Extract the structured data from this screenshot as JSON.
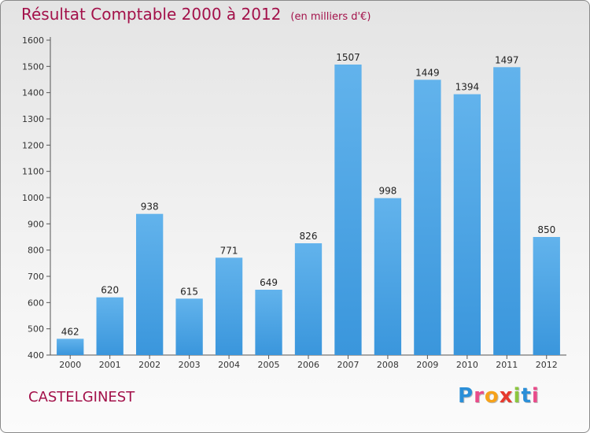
{
  "header": {
    "title": "Résultat Comptable 2000 à 2012",
    "subtitle": "(en milliers d'€)"
  },
  "footer": {
    "commune": "CASTELGINEST",
    "logo_letters": [
      "P",
      "r",
      "o",
      "x",
      "i",
      "t",
      "i"
    ],
    "logo_colors": [
      "#2b8fd8",
      "#e94c8a",
      "#f6a21a",
      "#e63a2e",
      "#8cc63f",
      "#2b8fd8",
      "#e94c8a"
    ]
  },
  "chart_data": {
    "type": "bar",
    "title": "Résultat Comptable 2000 à 2012",
    "subtitle": "(en milliers d'€)",
    "categories": [
      "2000",
      "2001",
      "2002",
      "2003",
      "2004",
      "2005",
      "2006",
      "2007",
      "2008",
      "2009",
      "2010",
      "2011",
      "2012"
    ],
    "values": [
      462,
      620,
      938,
      615,
      771,
      649,
      826,
      1507,
      998,
      1449,
      1394,
      1497,
      850
    ],
    "ylim": [
      400,
      1600
    ],
    "yticks": [
      400,
      500,
      600,
      700,
      800,
      900,
      1000,
      1100,
      1200,
      1300,
      1400,
      1500,
      1600
    ],
    "grid": false,
    "bar_color": "#3a96dc",
    "bar_color_light": "#62b3ec",
    "label_color": "#222222"
  }
}
